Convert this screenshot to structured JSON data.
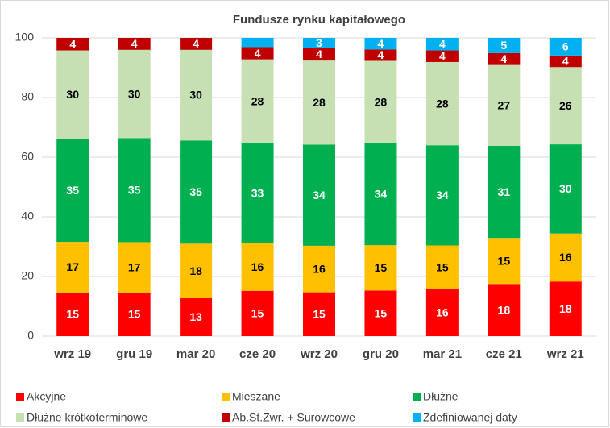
{
  "chart_data": {
    "type": "stacked_bar",
    "title": "Fundusze rynku kapitałowego",
    "categories": [
      "wrz 19",
      "gru 19",
      "mar 20",
      "cze 20",
      "wrz 20",
      "gru 20",
      "mar 21",
      "cze 21",
      "wrz 21"
    ],
    "ylim": [
      0,
      100
    ],
    "yticks": [
      0,
      20,
      40,
      60,
      80,
      100
    ],
    "grid": true,
    "legend": "bottom",
    "series": [
      {
        "name": "Akcyjne",
        "color": "#ff0000",
        "values": [
          14.6,
          14.6,
          12.7,
          15.2,
          14.7,
          15.3,
          15.7,
          17.5,
          18.3
        ],
        "value_labels": [
          "15",
          "15",
          "13",
          "15",
          "15",
          "15",
          "16",
          "18",
          "18"
        ]
      },
      {
        "name": "Mieszane",
        "color": "#ffc000",
        "values": [
          17.0,
          16.9,
          18.3,
          16.0,
          15.6,
          15.2,
          14.7,
          15.4,
          16.1
        ],
        "value_labels": [
          "17",
          "17",
          "18",
          "16",
          "16",
          "15",
          "15",
          "15",
          "16"
        ]
      },
      {
        "name": "Dłużne",
        "color": "#00b050",
        "values": [
          34.6,
          34.9,
          34.6,
          33.4,
          33.9,
          34.2,
          33.6,
          30.9,
          29.9
        ],
        "value_labels": [
          "35",
          "35",
          "35",
          "33",
          "34",
          "34",
          "34",
          "31",
          "30"
        ]
      },
      {
        "name": "Dłużne krótkoterminowe",
        "color": "#c6e0b4",
        "values": [
          29.6,
          29.6,
          30.4,
          28.2,
          28.2,
          27.6,
          27.9,
          27.1,
          25.9
        ],
        "value_labels": [
          "30",
          "30",
          "30",
          "28",
          "28",
          "28",
          "28",
          "27",
          "26"
        ]
      },
      {
        "name": "Ab.St.Zwr. + Surowcowe",
        "color": "#c00000",
        "values": [
          4.2,
          4.0,
          4.0,
          4.1,
          4.2,
          3.8,
          3.9,
          4.0,
          3.9
        ],
        "value_labels": [
          "4",
          "4",
          "4",
          "4",
          "4",
          "4",
          "4",
          "4",
          "4"
        ]
      },
      {
        "name": "Zdefiniowanej daty",
        "color": "#00b0f0",
        "values": [
          null,
          null,
          null,
          3.1,
          3.4,
          3.9,
          4.2,
          5.1,
          5.9
        ],
        "value_labels": [
          null,
          null,
          null,
          null,
          "3",
          "4",
          "4",
          "5",
          "6"
        ]
      }
    ]
  }
}
